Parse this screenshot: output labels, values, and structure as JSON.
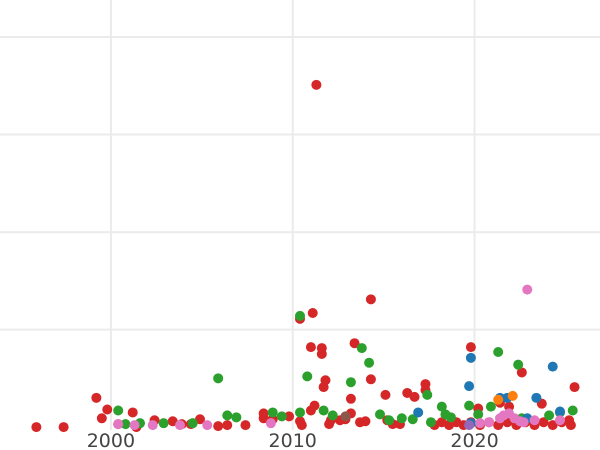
{
  "chart_data": {
    "type": "scatter",
    "title": "",
    "xlabel": "",
    "ylabel": "",
    "xlim": [
      1993.9,
      2026.9
    ],
    "ylim": [
      -0.03,
      4.38
    ],
    "grid": true,
    "xticks": [
      2000,
      2010,
      2020
    ],
    "xtick_labels": [
      "2000",
      "2010",
      "2020"
    ],
    "ygrid": [
      1,
      2,
      3,
      4
    ],
    "legend": "none",
    "series": [
      {
        "color": "#d62728",
        "points": [
          [
            1995.9,
            0
          ],
          [
            1997.4,
            0
          ],
          [
            1999.2,
            0.3
          ],
          [
            1999.5,
            0.09
          ],
          [
            1999.8,
            0.18
          ],
          [
            2001.2,
            0.15
          ],
          [
            2000.4,
            0.03
          ],
          [
            2001.4,
            0
          ],
          [
            2002.4,
            0.07
          ],
          [
            2003.4,
            0.06
          ],
          [
            2003.9,
            0.03
          ],
          [
            2004.4,
            0.03
          ],
          [
            2004.9,
            0.08
          ],
          [
            2005.9,
            0.01
          ],
          [
            2006.4,
            0.02
          ],
          [
            2007.4,
            0.02
          ],
          [
            2008.4,
            0.14
          ],
          [
            2008.4,
            0.09
          ],
          [
            2008.9,
            0.08
          ],
          [
            2009.8,
            0.11
          ],
          [
            2010.4,
            0.06
          ],
          [
            2011.0,
            0.17
          ],
          [
            2011.2,
            0.22
          ],
          [
            2011.1,
            1.17
          ],
          [
            2011.0,
            0.82
          ],
          [
            2010.4,
            1.11
          ],
          [
            2011.3,
            3.51
          ],
          [
            2011.6,
            0.81
          ],
          [
            2011.6,
            0.75
          ],
          [
            2011.8,
            0.48
          ],
          [
            2011.7,
            0.41
          ],
          [
            2012.1,
            0.07
          ],
          [
            2012.6,
            0.07
          ],
          [
            2012.9,
            0.08
          ],
          [
            2013.2,
            0.14
          ],
          [
            2013.2,
            0.29
          ],
          [
            2013.4,
            0.86
          ],
          [
            2013.7,
            0.05
          ],
          [
            2014.3,
            1.31
          ],
          [
            2014.3,
            0.49
          ],
          [
            2015.1,
            0.33
          ],
          [
            2015.2,
            0.07
          ],
          [
            2016.3,
            0.35
          ],
          [
            2016.7,
            0.31
          ],
          [
            2017.3,
            0.44
          ],
          [
            2017.3,
            0.38
          ],
          [
            2019.8,
            0.82
          ],
          [
            2020.2,
            0.19
          ],
          [
            2021.4,
            0.25
          ],
          [
            2021.9,
            0.21
          ],
          [
            2022.6,
            0.56
          ],
          [
            2023.7,
            0.24
          ],
          [
            2025.5,
            0.41
          ],
          [
            2025.2,
            0.07
          ],
          [
            2010.5,
            0.02
          ],
          [
            2012.0,
            0.03
          ],
          [
            2014.0,
            0.06
          ],
          [
            2015.5,
            0.03
          ],
          [
            2015.9,
            0.03
          ],
          [
            2017.8,
            0.02
          ],
          [
            2018.2,
            0.05
          ],
          [
            2018.6,
            0.02
          ],
          [
            2019.0,
            0.05
          ],
          [
            2019.4,
            0.02
          ],
          [
            2019.8,
            0.05
          ],
          [
            2020.3,
            0.02
          ],
          [
            2020.8,
            0.05
          ],
          [
            2021.3,
            0.02
          ],
          [
            2021.8,
            0.05
          ],
          [
            2022.3,
            0.02
          ],
          [
            2022.8,
            0.05
          ],
          [
            2023.3,
            0.02
          ],
          [
            2023.8,
            0.05
          ],
          [
            2024.3,
            0.02
          ],
          [
            2024.8,
            0.05
          ],
          [
            2025.3,
            0.02
          ]
        ]
      },
      {
        "color": "#2ca02c",
        "points": [
          [
            2000.4,
            0.17
          ],
          [
            2000.8,
            0.03
          ],
          [
            2001.6,
            0.04
          ],
          [
            2002.9,
            0.04
          ],
          [
            2004.5,
            0.04
          ],
          [
            2005.9,
            0.5
          ],
          [
            2006.4,
            0.12
          ],
          [
            2006.9,
            0.1
          ],
          [
            2008.9,
            0.15
          ],
          [
            2009.4,
            0.11
          ],
          [
            2010.4,
            1.14
          ],
          [
            2010.8,
            0.52
          ],
          [
            2010.4,
            0.15
          ],
          [
            2011.7,
            0.17
          ],
          [
            2012.2,
            0.12
          ],
          [
            2013.2,
            0.46
          ],
          [
            2013.8,
            0.81
          ],
          [
            2014.2,
            0.66
          ],
          [
            2014.8,
            0.13
          ],
          [
            2015.3,
            0.07
          ],
          [
            2016.0,
            0.09
          ],
          [
            2016.6,
            0.08
          ],
          [
            2017.4,
            0.33
          ],
          [
            2017.6,
            0.05
          ],
          [
            2018.2,
            0.21
          ],
          [
            2018.4,
            0.13
          ],
          [
            2018.7,
            0.1
          ],
          [
            2019.7,
            0.22
          ],
          [
            2020.2,
            0.13
          ],
          [
            2020.9,
            0.21
          ],
          [
            2021.3,
            0.77
          ],
          [
            2022.4,
            0.64
          ],
          [
            2022.6,
            0.09
          ],
          [
            2024.1,
            0.12
          ],
          [
            2024.7,
            0.15
          ],
          [
            2025.4,
            0.17
          ]
        ]
      },
      {
        "color": "#1f77b4",
        "points": [
          [
            2019.8,
            0.71
          ],
          [
            2019.7,
            0.42
          ],
          [
            2016.9,
            0.15
          ],
          [
            2021.4,
            0.3
          ],
          [
            2021.8,
            0.3
          ],
          [
            2023.4,
            0.3
          ],
          [
            2024.3,
            0.62
          ],
          [
            2024.7,
            0.16
          ],
          [
            2022.9,
            0.09
          ],
          [
            2019.8,
            0.04
          ]
        ]
      },
      {
        "color": "#ff7f0e",
        "points": [
          [
            2021.3,
            0.28
          ],
          [
            2022.1,
            0.32
          ]
        ]
      },
      {
        "color": "#e377c2",
        "points": [
          [
            2022.9,
            1.41
          ],
          [
            2020.3,
            0.04
          ],
          [
            2020.8,
            0.05
          ],
          [
            2021.4,
            0.09
          ],
          [
            2021.6,
            0.12
          ],
          [
            2021.9,
            0.14
          ],
          [
            2022.2,
            0.09
          ],
          [
            2022.5,
            0.06
          ],
          [
            2022.7,
            0.05
          ],
          [
            2023.3,
            0.07
          ],
          [
            2024.7,
            0.07
          ],
          [
            2000.4,
            0.03
          ],
          [
            2001.3,
            0.02
          ],
          [
            2002.3,
            0.02
          ],
          [
            2003.8,
            0.02
          ],
          [
            2005.3,
            0.02
          ],
          [
            2008.8,
            0.04
          ]
        ]
      },
      {
        "color": "#9467bd",
        "points": [
          [
            2019.7,
            0.02
          ]
        ]
      },
      {
        "color": "#8c564b",
        "points": [
          [
            2012.9,
            0.11
          ]
        ]
      }
    ]
  }
}
